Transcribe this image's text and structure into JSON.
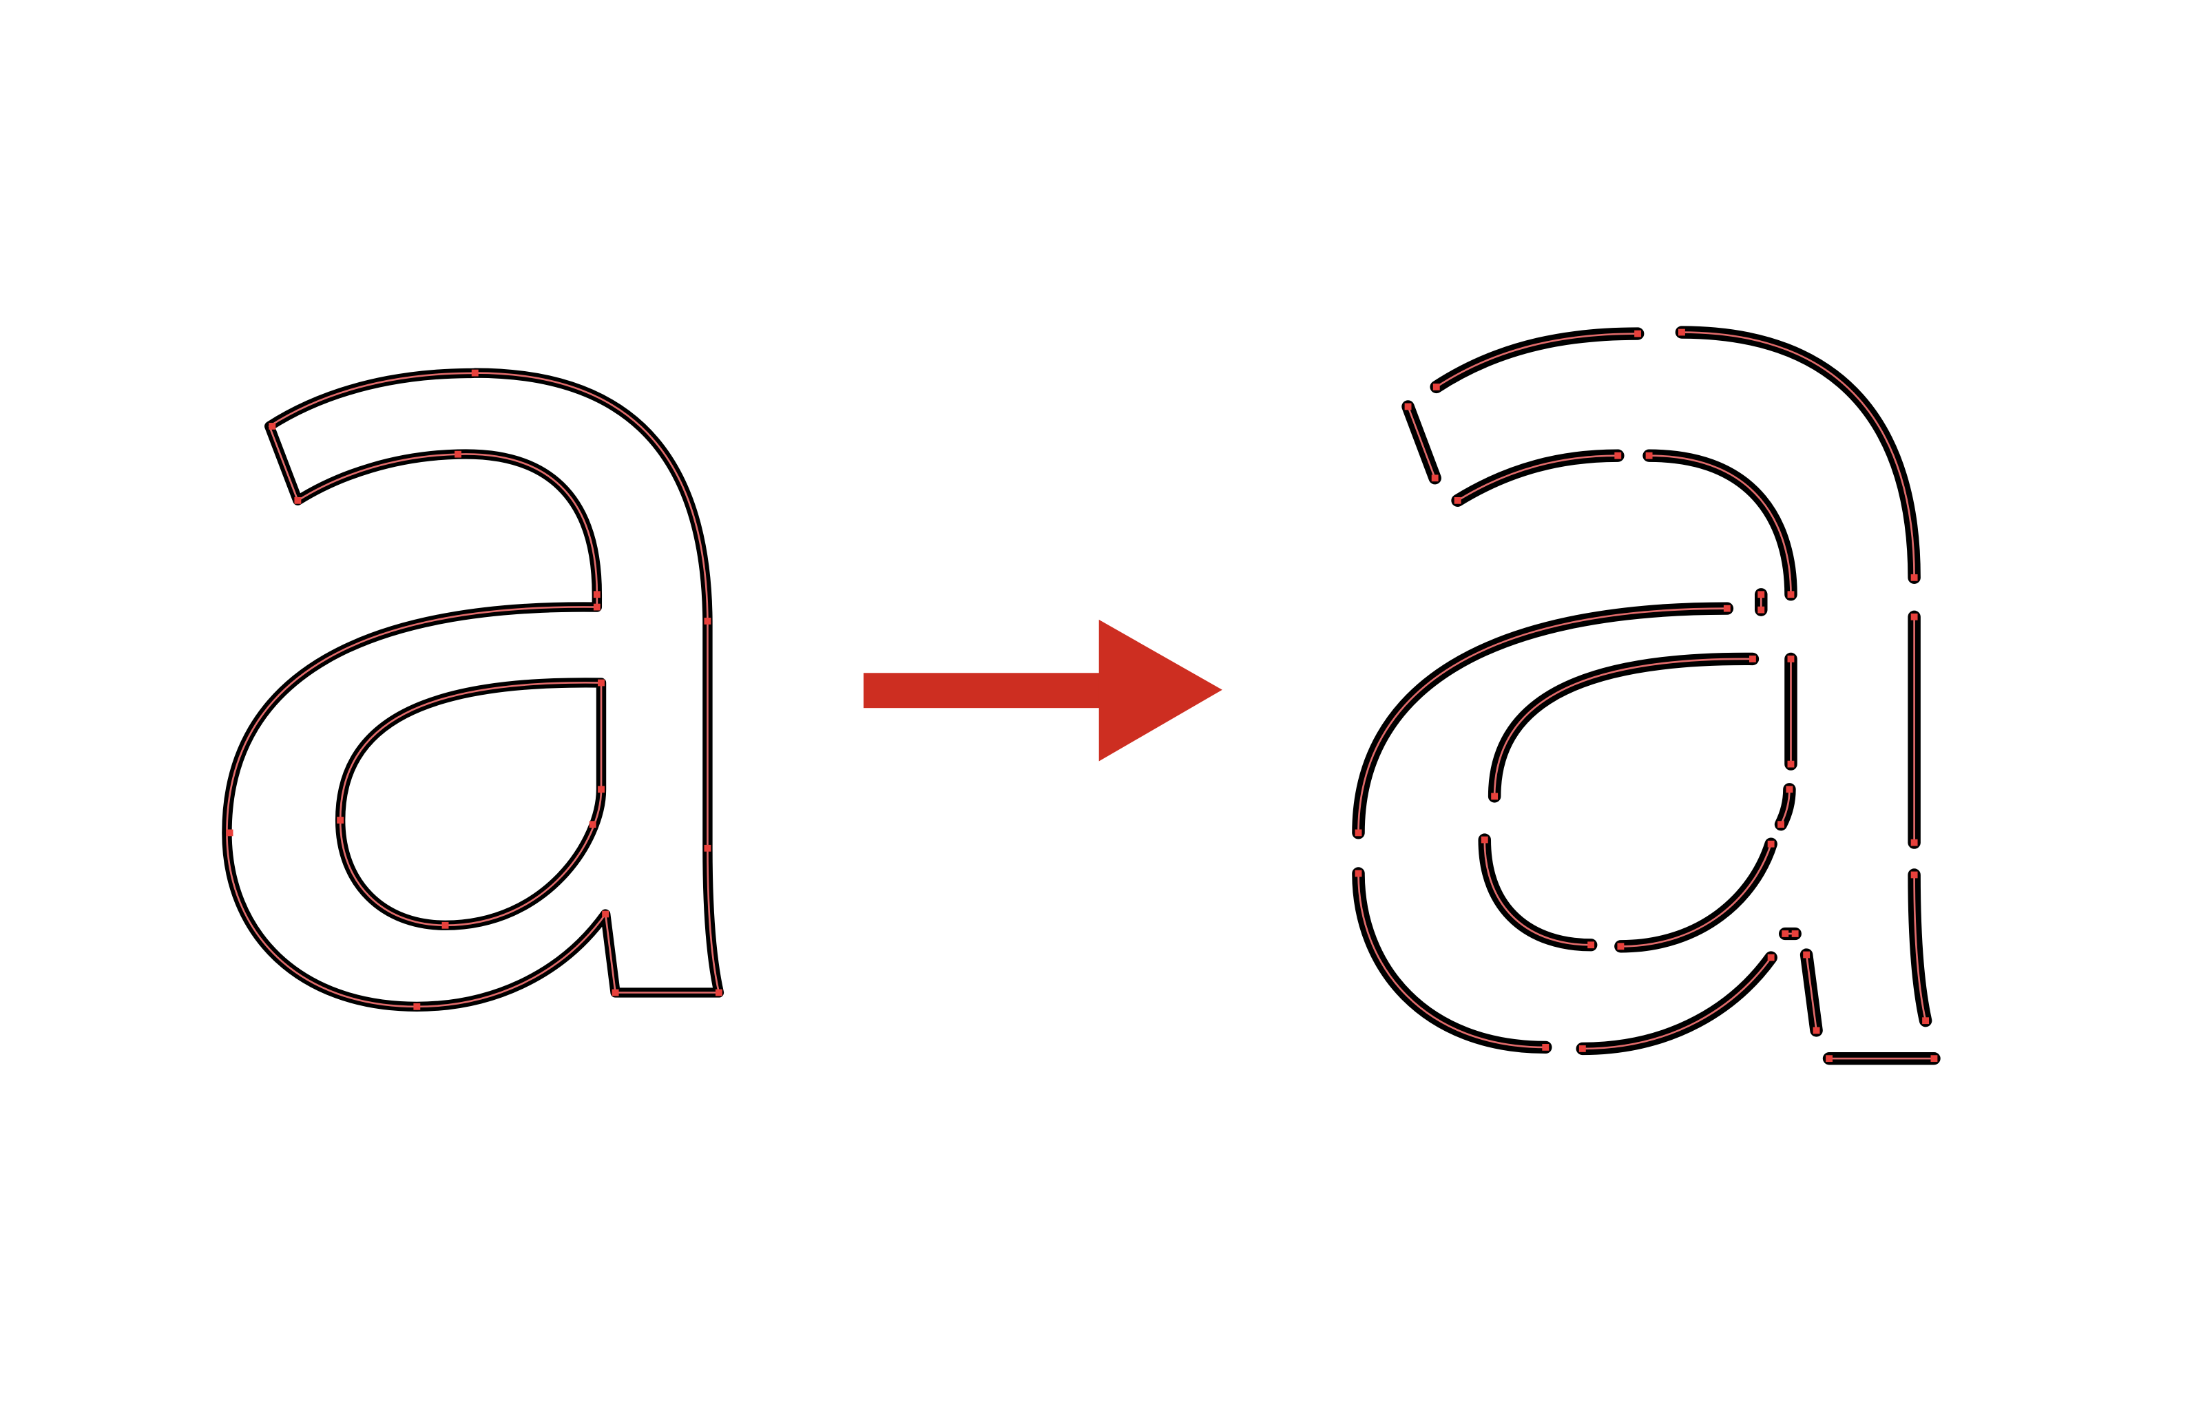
{
  "figure": {
    "source_glyph": "a",
    "result_glyph": "a"
  },
  "colors": {
    "background": "#ffffff",
    "stroke": "#000000",
    "path_line": "#e06a6a",
    "anchor": "#e8413c",
    "arrow": "#cd2e21"
  },
  "icons": {
    "arrow": "right-arrow-icon"
  }
}
